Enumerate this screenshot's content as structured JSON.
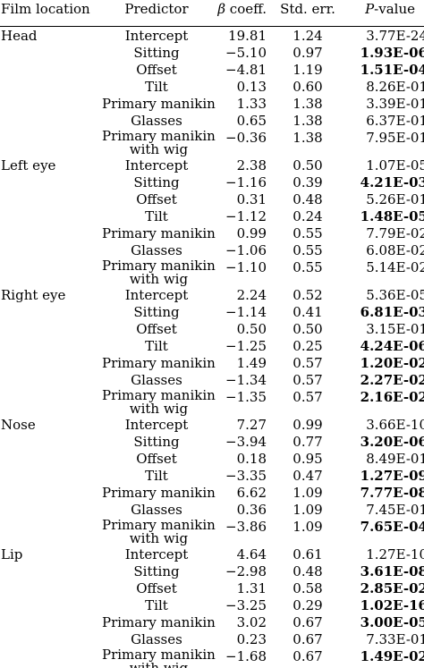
{
  "headers": {
    "location": "Film location",
    "predictor": "Predictor",
    "beta": "coeff.",
    "beta_symbol": "β",
    "std": "Std. err.",
    "p_symbol": "P",
    "p_suffix": "-value"
  },
  "groups": [
    {
      "location": "Head",
      "rows": [
        {
          "predictor": "Intercept",
          "beta": "19.81",
          "std": "1.24",
          "p": "3.77E-24",
          "bold": false
        },
        {
          "predictor": "Sitting",
          "beta": "−5.10",
          "std": "0.97",
          "p": "1.93E-06",
          "bold": true
        },
        {
          "predictor": "Offset",
          "beta": "−4.81",
          "std": "1.19",
          "p": "1.51E-04",
          "bold": true
        },
        {
          "predictor": "Tilt",
          "beta": "0.13",
          "std": "0.60",
          "p": "8.26E-01",
          "bold": false
        },
        {
          "predictor": "Primary manikin",
          "beta": "1.33",
          "std": "1.38",
          "p": "3.39E-01",
          "bold": false
        },
        {
          "predictor": "Glasses",
          "beta": "0.65",
          "std": "1.38",
          "p": "6.37E-01",
          "bold": false
        },
        {
          "predictor": "Primary manikin",
          "predictor2": "with wig",
          "beta": "−0.36",
          "std": "1.38",
          "p": "7.95E-01",
          "bold": false
        }
      ]
    },
    {
      "location": "Left eye",
      "rows": [
        {
          "predictor": "Intercept",
          "beta": "2.38",
          "std": "0.50",
          "p": "1.07E-05",
          "bold": false
        },
        {
          "predictor": "Sitting",
          "beta": "−1.16",
          "std": "0.39",
          "p": "4.21E-03",
          "bold": true
        },
        {
          "predictor": "Offset",
          "beta": "0.31",
          "std": "0.48",
          "p": "5.26E-01",
          "bold": false
        },
        {
          "predictor": "Tilt",
          "beta": "−1.12",
          "std": "0.24",
          "p": "1.48E-05",
          "bold": true
        },
        {
          "predictor": "Primary manikin",
          "beta": "0.99",
          "std": "0.55",
          "p": "7.79E-02",
          "bold": false
        },
        {
          "predictor": "Glasses",
          "beta": "−1.06",
          "std": "0.55",
          "p": "6.08E-02",
          "bold": false
        },
        {
          "predictor": "Primary manikin",
          "predictor2": "with wig",
          "beta": "−1.10",
          "std": "0.55",
          "p": "5.14E-02",
          "bold": false
        }
      ]
    },
    {
      "location": "Right eye",
      "rows": [
        {
          "predictor": "Intercept",
          "beta": "2.24",
          "std": "0.52",
          "p": "5.36E-05",
          "bold": false
        },
        {
          "predictor": "Sitting",
          "beta": "−1.14",
          "std": "0.41",
          "p": "6.81E-03",
          "bold": true
        },
        {
          "predictor": "Offset",
          "beta": "0.50",
          "std": "0.50",
          "p": "3.15E-01",
          "bold": false
        },
        {
          "predictor": "Tilt",
          "beta": "−1.25",
          "std": "0.25",
          "p": "4.24E-06",
          "bold": true
        },
        {
          "predictor": "Primary manikin",
          "beta": "1.49",
          "std": "0.57",
          "p": "1.20E-02",
          "bold": true
        },
        {
          "predictor": "Glasses",
          "beta": "−1.34",
          "std": "0.57",
          "p": "2.27E-02",
          "bold": true
        },
        {
          "predictor": "Primary manikin",
          "predictor2": "with wig",
          "beta": "−1.35",
          "std": "0.57",
          "p": "2.16E-02",
          "bold": true
        }
      ]
    },
    {
      "location": "Nose",
      "rows": [
        {
          "predictor": "Intercept",
          "beta": "7.27",
          "std": "0.99",
          "p": "3.66E-10",
          "bold": false
        },
        {
          "predictor": "Sitting",
          "beta": "−3.94",
          "std": "0.77",
          "p": "3.20E-06",
          "bold": true
        },
        {
          "predictor": "Offset",
          "beta": "0.18",
          "std": "0.95",
          "p": "8.49E-01",
          "bold": false
        },
        {
          "predictor": "Tilt",
          "beta": "−3.35",
          "std": "0.47",
          "p": "1.27E-09",
          "bold": true
        },
        {
          "predictor": "Primary manikin",
          "beta": "6.62",
          "std": "1.09",
          "p": "7.77E-08",
          "bold": true
        },
        {
          "predictor": "Glasses",
          "beta": "0.36",
          "std": "1.09",
          "p": "7.45E-01",
          "bold": false
        },
        {
          "predictor": "Primary manikin",
          "predictor2": "with wig",
          "beta": "−3.86",
          "std": "1.09",
          "p": "7.65E-04",
          "bold": true
        }
      ]
    },
    {
      "location": "Lip",
      "rows": [
        {
          "predictor": "Intercept",
          "beta": "4.64",
          "std": "0.61",
          "p": "1.27E-10",
          "bold": false
        },
        {
          "predictor": "Sitting",
          "beta": "−2.98",
          "std": "0.48",
          "p": "3.61E-08",
          "bold": true
        },
        {
          "predictor": "Offset",
          "beta": "1.31",
          "std": "0.58",
          "p": "2.85E-02",
          "bold": true
        },
        {
          "predictor": "Tilt",
          "beta": "−3.25",
          "std": "0.29",
          "p": "1.02E-16",
          "bold": true
        },
        {
          "predictor": "Primary manikin",
          "beta": "3.02",
          "std": "0.67",
          "p": "3.00E-05",
          "bold": true
        },
        {
          "predictor": "Glasses",
          "beta": "0.23",
          "std": "0.67",
          "p": "7.33E-01",
          "bold": false
        },
        {
          "predictor": "Primary manikin",
          "predictor2": "with wig",
          "beta": "−1.68",
          "std": "0.67",
          "p": "1.49E-02",
          "bold": true
        }
      ]
    }
  ]
}
